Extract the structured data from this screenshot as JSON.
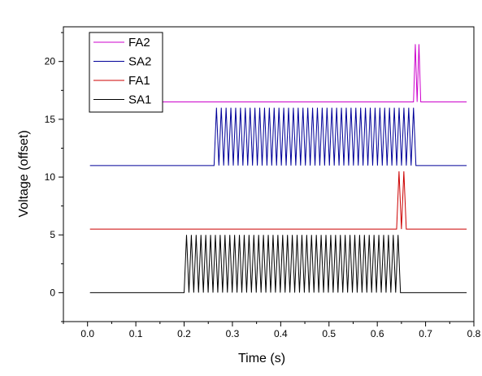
{
  "chart_data": {
    "type": "line",
    "xlabel": "Time (s)",
    "ylabel": "Voltage (offset)",
    "xlim": [
      -0.05,
      0.8
    ],
    "ylim": [
      -2.5,
      23
    ],
    "xticks": [
      "0.0",
      "0.1",
      "0.2",
      "0.3",
      "0.4",
      "0.5",
      "0.6",
      "0.7",
      "0.8"
    ],
    "xtick_values": [
      0,
      0.1,
      0.2,
      0.3,
      0.4,
      0.5,
      0.6,
      0.7,
      0.8
    ],
    "yticks": [
      "0",
      "5",
      "10",
      "15",
      "20"
    ],
    "ytick_values": [
      0,
      5,
      10,
      15,
      20
    ],
    "grid": false,
    "legend_position": "top-left",
    "legend_order": [
      "FA2",
      "SA2",
      "FA1",
      "SA1"
    ],
    "series": [
      {
        "name": "SA1",
        "color": "#000000",
        "baseline": 0,
        "amplitude": 5,
        "x_range": [
          0.005,
          0.785
        ],
        "burst_start": 0.2,
        "burst_end": 0.648,
        "cycles": 45
      },
      {
        "name": "FA1",
        "color": "#cc0000",
        "baseline": 5.5,
        "amplitude": 5,
        "x_range": [
          0.005,
          0.785
        ],
        "burst_start": 0.64,
        "burst_end": 0.66,
        "cycles": 2
      },
      {
        "name": "SA2",
        "color": "#000099",
        "baseline": 11,
        "amplitude": 5,
        "x_range": [
          0.005,
          0.785
        ],
        "burst_start": 0.262,
        "burst_end": 0.68,
        "cycles": 42
      },
      {
        "name": "FA2",
        "color": "#cc00cc",
        "baseline": 16.5,
        "amplitude": 5,
        "x_range": [
          0.005,
          0.785
        ],
        "burst_start": 0.675,
        "burst_end": 0.69,
        "cycles": 2
      }
    ]
  }
}
